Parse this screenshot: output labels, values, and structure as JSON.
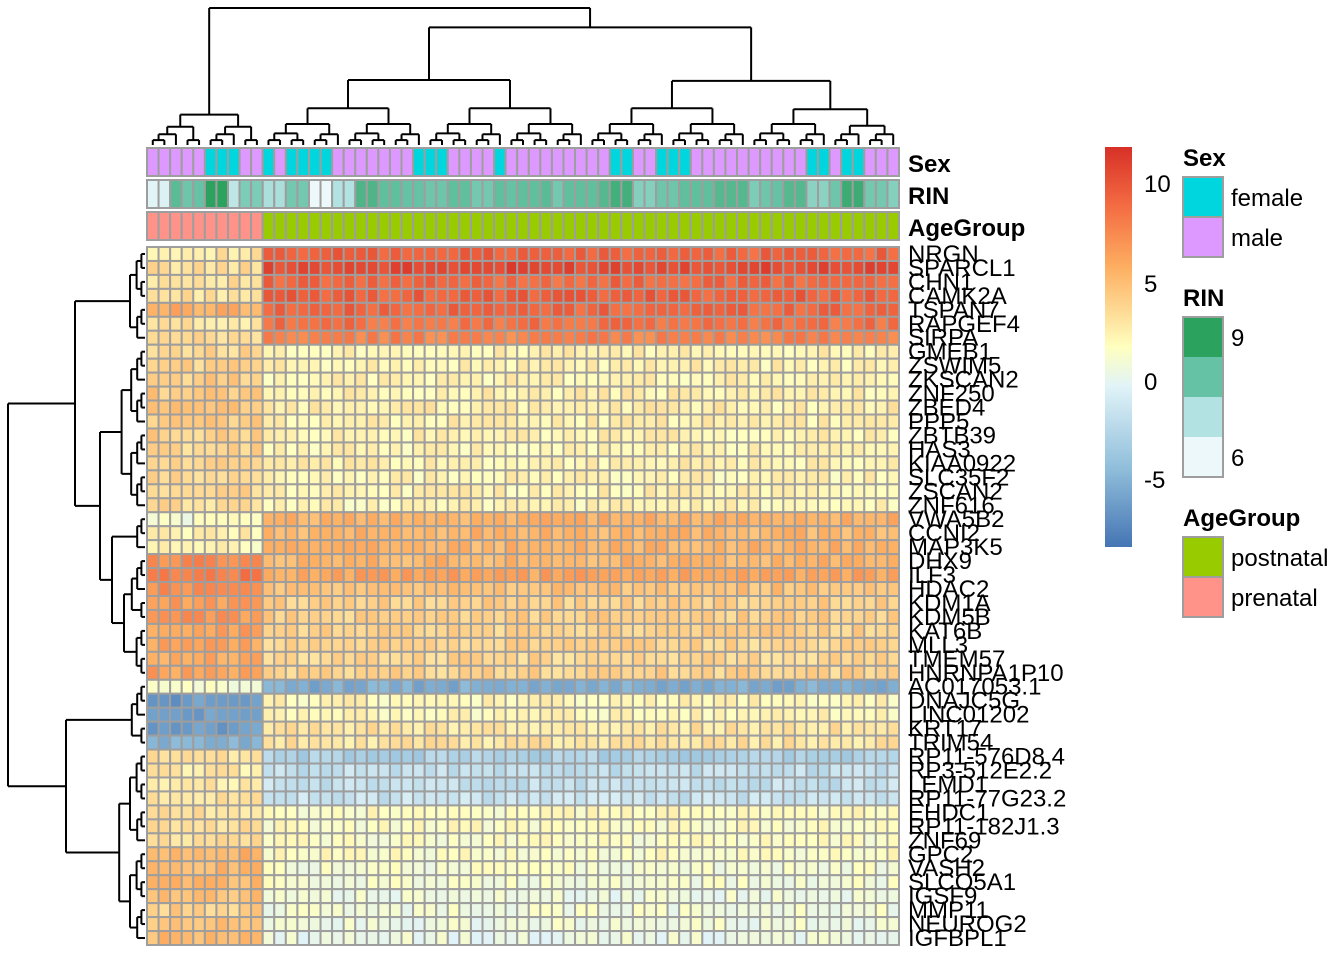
{
  "chart_data": {
    "type": "heatmap",
    "title": "",
    "n_columns": 65,
    "column_groups": {
      "AgeGroup": {
        "prenatal": 10,
        "postnatal": 55
      }
    },
    "column_annotations": {
      "Sex": [
        "male",
        "male",
        "male",
        "male",
        "male",
        "female",
        "female",
        "female",
        "male",
        "male",
        "female",
        "male",
        "female",
        "female",
        "female",
        "female",
        "male",
        "male",
        "male",
        "male",
        "male",
        "male",
        "male",
        "female",
        "female",
        "female",
        "male",
        "male",
        "male",
        "male",
        "female",
        "male",
        "male",
        "male",
        "male",
        "male",
        "male",
        "male",
        "male",
        "male",
        "female",
        "female",
        "male",
        "male",
        "female",
        "female",
        "female",
        "male",
        "male",
        "male",
        "male",
        "male",
        "male",
        "male",
        "male",
        "male",
        "male",
        "female",
        "female",
        "male",
        "female",
        "female",
        "male",
        "male",
        "male"
      ],
      "RIN": [
        6.2,
        6.3,
        8.2,
        7.9,
        8.0,
        9.0,
        9.0,
        6.8,
        7.7,
        7.7,
        7.1,
        7.1,
        7.8,
        7.8,
        6.0,
        6.0,
        7.0,
        7.0,
        8.4,
        8.4,
        8.1,
        8.1,
        8.0,
        8.0,
        7.9,
        7.9,
        8.1,
        8.1,
        7.8,
        7.8,
        8.1,
        8.0,
        8.1,
        8.1,
        8.2,
        7.8,
        8.1,
        8.1,
        8.1,
        8.3,
        8.6,
        8.6,
        7.6,
        7.6,
        7.9,
        7.9,
        8.1,
        8.1,
        8.1,
        8.3,
        8.3,
        8.3,
        7.7,
        7.9,
        8.0,
        8.3,
        8.3,
        7.5,
        7.5,
        7.9,
        8.7,
        8.7,
        7.8,
        7.8,
        7.6
      ],
      "AgeGroup": [
        "prenatal",
        "prenatal",
        "prenatal",
        "prenatal",
        "prenatal",
        "prenatal",
        "prenatal",
        "prenatal",
        "prenatal",
        "prenatal",
        "postnatal",
        "postnatal",
        "postnatal",
        "postnatal",
        "postnatal",
        "postnatal",
        "postnatal",
        "postnatal",
        "postnatal",
        "postnatal",
        "postnatal",
        "postnatal",
        "postnatal",
        "postnatal",
        "postnatal",
        "postnatal",
        "postnatal",
        "postnatal",
        "postnatal",
        "postnatal",
        "postnatal",
        "postnatal",
        "postnatal",
        "postnatal",
        "postnatal",
        "postnatal",
        "postnatal",
        "postnatal",
        "postnatal",
        "postnatal",
        "postnatal",
        "postnatal",
        "postnatal",
        "postnatal",
        "postnatal",
        "postnatal",
        "postnatal",
        "postnatal",
        "postnatal",
        "postnatal",
        "postnatal",
        "postnatal",
        "postnatal",
        "postnatal",
        "postnatal",
        "postnatal",
        "postnatal",
        "postnatal",
        "postnatal",
        "postnatal",
        "postnatal",
        "postnatal",
        "postnatal",
        "postnatal",
        "postnatal"
      ]
    },
    "annotation_labels": [
      "Sex",
      "RIN",
      "AgeGroup"
    ],
    "rows": [
      {
        "gene": "NRGN",
        "prenatal": 3.2,
        "postnatal": 9.5
      },
      {
        "gene": "SPARCL1",
        "prenatal": 3.6,
        "postnatal": 10.8
      },
      {
        "gene": "CHN1",
        "prenatal": 3.6,
        "postnatal": 9.2
      },
      {
        "gene": "CAMK2A",
        "prenatal": 3.5,
        "postnatal": 9.6
      },
      {
        "gene": "TSPAN7",
        "prenatal": 6.0,
        "postnatal": 9.4
      },
      {
        "gene": "RAPGEF4",
        "prenatal": 3.3,
        "postnatal": 8.8
      },
      {
        "gene": "SIRPA",
        "prenatal": 3.6,
        "postnatal": 8.0
      },
      {
        "gene": "GMEB1",
        "prenatal": 4.0,
        "postnatal": 2.6
      },
      {
        "gene": "ZSWIM5",
        "prenatal": 4.3,
        "postnatal": 2.6
      },
      {
        "gene": "ZKSCAN2",
        "prenatal": 4.4,
        "postnatal": 2.6
      },
      {
        "gene": "ZNF250",
        "prenatal": 4.6,
        "postnatal": 2.7
      },
      {
        "gene": "ZBED4",
        "prenatal": 4.7,
        "postnatal": 2.8
      },
      {
        "gene": "PPP5",
        "prenatal": 4.5,
        "postnatal": 2.7
      },
      {
        "gene": "ZBTB39",
        "prenatal": 4.3,
        "postnatal": 2.6
      },
      {
        "gene": "HAS3",
        "prenatal": 4.0,
        "postnatal": 2.5
      },
      {
        "gene": "KIAA0922",
        "prenatal": 4.1,
        "postnatal": 2.6
      },
      {
        "gene": "SLC35F2",
        "prenatal": 3.8,
        "postnatal": 2.5
      },
      {
        "gene": "ZSCAN2",
        "prenatal": 3.9,
        "postnatal": 2.6
      },
      {
        "gene": "ZNF616",
        "prenatal": 3.7,
        "postnatal": 2.4
      },
      {
        "gene": "VWA5B2",
        "prenatal": 1.5,
        "postnatal": 5.8
      },
      {
        "gene": "CCNI2",
        "prenatal": 2.6,
        "postnatal": 5.6
      },
      {
        "gene": "MAP3K5",
        "prenatal": 2.4,
        "postnatal": 5.7
      },
      {
        "gene": "DHX9",
        "prenatal": 7.6,
        "postnatal": 5.6
      },
      {
        "gene": "ILF3",
        "prenatal": 8.4,
        "postnatal": 6.4
      },
      {
        "gene": "HDAC2",
        "prenatal": 7.4,
        "postnatal": 5.0
      },
      {
        "gene": "KDM1A",
        "prenatal": 6.8,
        "postnatal": 4.3
      },
      {
        "gene": "KDM5B",
        "prenatal": 7.0,
        "postnatal": 4.3
      },
      {
        "gene": "KAT6B",
        "prenatal": 6.6,
        "postnatal": 4.2
      },
      {
        "gene": "MLL3",
        "prenatal": 6.3,
        "postnatal": 4.1
      },
      {
        "gene": "TMEM57",
        "prenatal": 6.0,
        "postnatal": 4.0
      },
      {
        "gene": "HNRNPA1P10",
        "prenatal": 6.6,
        "postnatal": 4.2
      },
      {
        "gene": "AC017053.1",
        "prenatal": 1.4,
        "postnatal": -5.0
      },
      {
        "gene": "DNAJC5G",
        "prenatal": -6.0,
        "postnatal": 2.4
      },
      {
        "gene": "LINC01202",
        "prenatal": -5.5,
        "postnatal": 2.3
      },
      {
        "gene": "KRT17",
        "prenatal": -5.9,
        "postnatal": 3.3
      },
      {
        "gene": "TRIM54",
        "prenatal": -4.6,
        "postnatal": 3.3
      },
      {
        "gene": "RP11-576D8.4",
        "prenatal": 3.2,
        "postnatal": -2.5
      },
      {
        "gene": "RP3-512E2.2",
        "prenatal": 3.0,
        "postnatal": -1.5
      },
      {
        "gene": "LEMD1",
        "prenatal": 3.0,
        "postnatal": -1.4
      },
      {
        "gene": "RP11-77G23.2",
        "prenatal": 3.3,
        "postnatal": -1.2
      },
      {
        "gene": "EHDC1",
        "prenatal": 3.6,
        "postnatal": 2.0
      },
      {
        "gene": "RP11-182J1.3",
        "prenatal": 3.4,
        "postnatal": 1.9
      },
      {
        "gene": "ZNF69",
        "prenatal": 3.7,
        "postnatal": 1.8
      },
      {
        "gene": "GPC2",
        "prenatal": 5.8,
        "postnatal": 1.9
      },
      {
        "gene": "VASH2",
        "prenatal": 5.4,
        "postnatal": 1.5
      },
      {
        "gene": "SLCO5A1",
        "prenatal": 5.4,
        "postnatal": 1.4
      },
      {
        "gene": "IGSF9",
        "prenatal": 5.2,
        "postnatal": 0.9
      },
      {
        "gene": "MMP11",
        "prenatal": 4.3,
        "postnatal": 1.2
      },
      {
        "gene": "NEUROG2",
        "prenatal": 4.9,
        "postnatal": 1.0
      },
      {
        "gene": "IGFBPL1",
        "prenatal": 5.3,
        "postnatal": 0.8
      }
    ],
    "color_scale": {
      "range": [
        -8,
        12
      ],
      "ticks": [
        10,
        5,
        0,
        -5
      ],
      "stops": [
        {
          "value": -8,
          "color": "#4575b4"
        },
        {
          "value": -4,
          "color": "#91bfdb"
        },
        {
          "value": 0,
          "color": "#e0f3f8"
        },
        {
          "value": 2,
          "color": "#ffffbf"
        },
        {
          "value": 6,
          "color": "#fdae61"
        },
        {
          "value": 9,
          "color": "#f46d43"
        },
        {
          "value": 12,
          "color": "#d73027"
        }
      ]
    },
    "legends": {
      "Sex": {
        "title": "Sex",
        "items": [
          {
            "label": "female",
            "color": "#00d6de"
          },
          {
            "label": "male",
            "color": "#dd99ff"
          }
        ]
      },
      "RIN": {
        "title": "RIN",
        "top_label": "9",
        "bottom_label": "6",
        "range": [
          6,
          9
        ],
        "colors": [
          "#2ca25f",
          "#66c2a4",
          "#b2e2e2",
          "#edf8fb"
        ]
      },
      "AgeGroup": {
        "title": "AgeGroup",
        "items": [
          {
            "label": "postnatal",
            "color": "#99cc00"
          },
          {
            "label": "prenatal",
            "color": "#ff9289"
          }
        ]
      }
    },
    "grid": true,
    "dendrograms": [
      "rows-left",
      "columns-top"
    ]
  }
}
